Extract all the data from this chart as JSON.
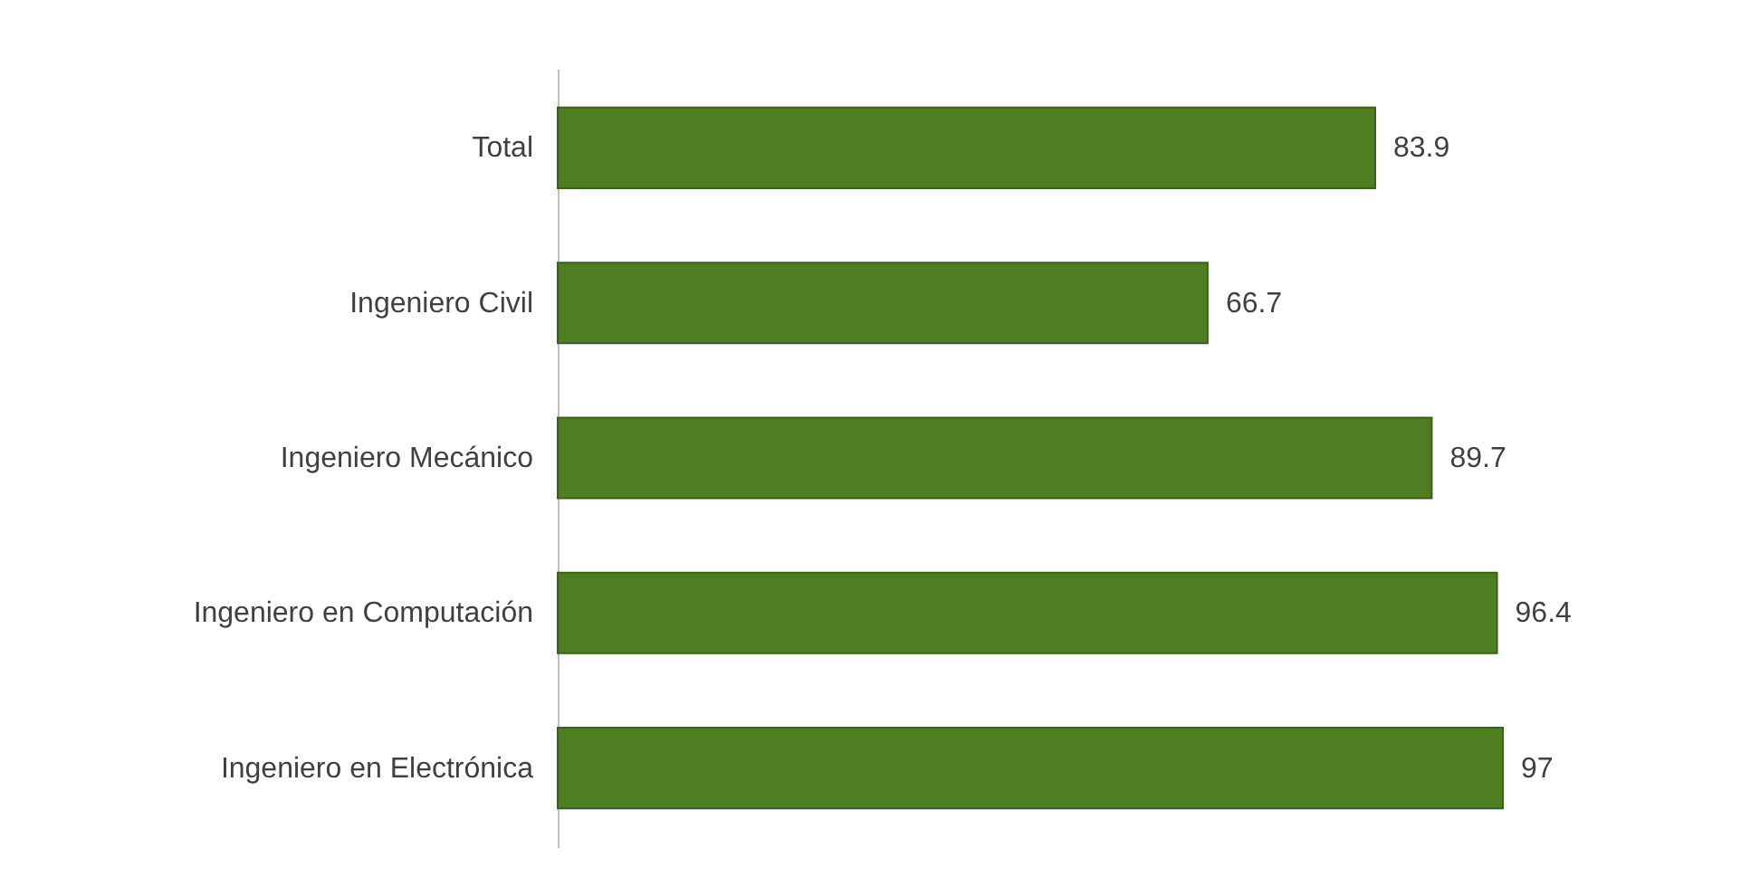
{
  "chart_data": {
    "type": "bar",
    "orientation": "horizontal",
    "categories": [
      "Total",
      "Ingeniero Civil",
      "Ingeniero Mecánico",
      "Ingeniero en Computación",
      "Ingeniero en Electrónica"
    ],
    "values": [
      83.9,
      66.7,
      89.7,
      96.4,
      97
    ],
    "color": "#4e7e21",
    "data_labels": true
  }
}
